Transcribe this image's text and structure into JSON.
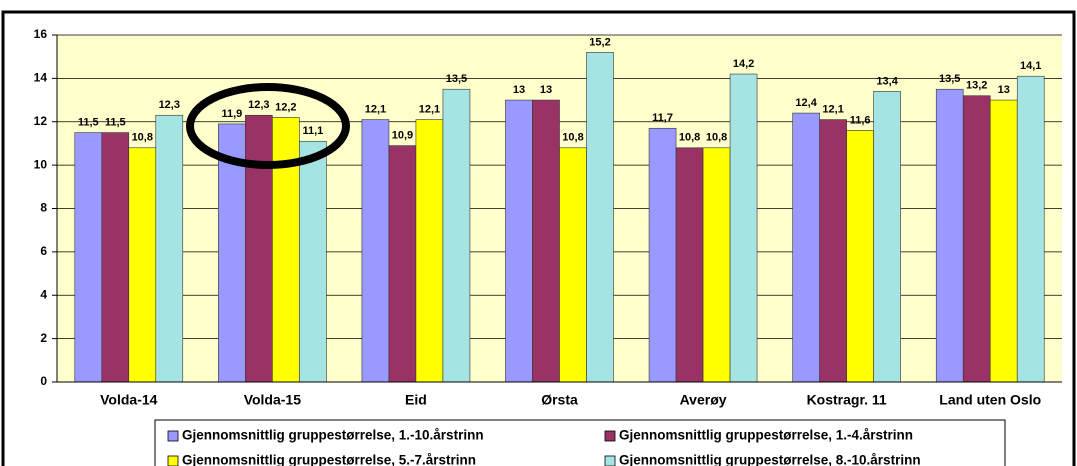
{
  "chart_data": {
    "type": "bar",
    "categories": [
      "Volda-14",
      "Volda-15",
      "Eid",
      "Ørsta",
      "Averøy",
      "Kostragr. 11",
      "Land uten Oslo"
    ],
    "series": [
      {
        "name": "Gjennomsnittlig gruppestørrelse, 1.-10.årstrinn",
        "color": "#9999ff",
        "values": [
          11.5,
          11.9,
          12.1,
          13,
          11.7,
          12.4,
          13.5
        ],
        "value_labels": [
          "11,5",
          "11,9",
          "12,1",
          "13",
          "11,7",
          "12,4",
          "13,5"
        ]
      },
      {
        "name": "Gjennomsnittlig gruppestørrelse, 1.-4.årstrinn",
        "color": "#993366",
        "values": [
          11.5,
          12.3,
          10.9,
          13,
          10.8,
          12.1,
          13.2
        ],
        "value_labels": [
          "11,5",
          "12,3",
          "10,9",
          "13",
          "10,8",
          "12,1",
          "13,2"
        ]
      },
      {
        "name": "Gjennomsnittlig gruppestørrelse, 5.-7.årstrinn",
        "color": "#ffff00",
        "values": [
          10.8,
          12.2,
          12.1,
          10.8,
          10.8,
          11.6,
          13
        ],
        "value_labels": [
          "10,8",
          "12,2",
          "12,1",
          "10,8",
          "10,8",
          "11,6",
          "13"
        ]
      },
      {
        "name": "Gjennomsnittlig gruppestørrelse, 8.-10.årstrinn",
        "color": "#a6e3e3",
        "values": [
          12.3,
          11.1,
          13.5,
          15.2,
          14.2,
          13.4,
          14.1
        ],
        "value_labels": [
          "12,3",
          "11,1",
          "13,5",
          "15,2",
          "14,2",
          "13,4",
          "14,1"
        ]
      }
    ],
    "ylim": [
      0,
      16
    ],
    "yticks": [
      0,
      2,
      4,
      6,
      8,
      10,
      12,
      14,
      16
    ],
    "grid": true,
    "legend": "bottom"
  }
}
